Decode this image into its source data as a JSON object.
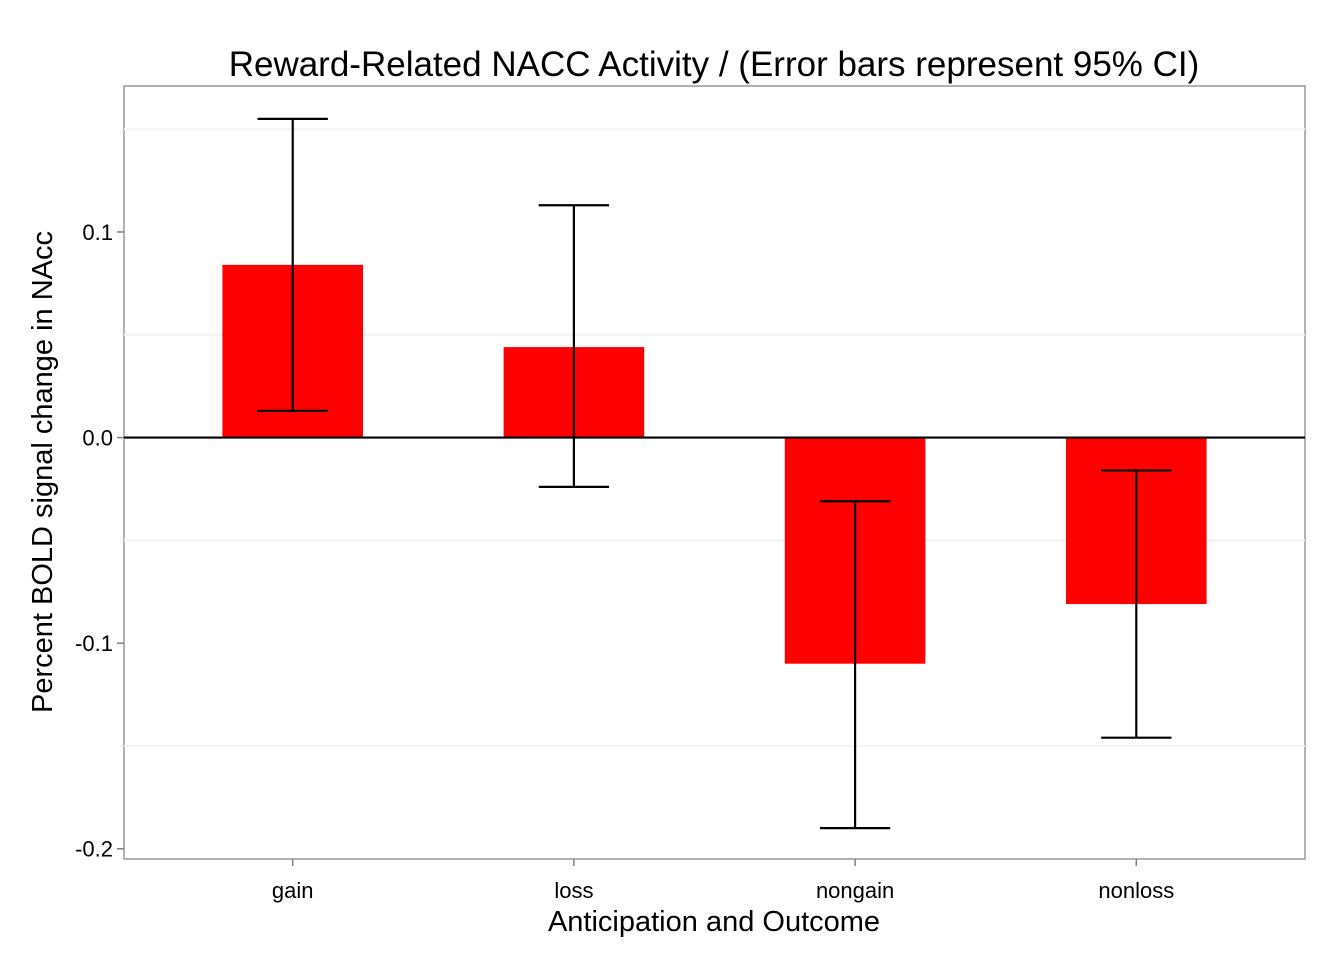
{
  "chart_data": {
    "type": "bar",
    "title": "Reward-Related NACC Activity / (Error bars represent 95% CI)",
    "xlabel": "Anticipation and Outcome",
    "ylabel": "Percent BOLD signal change in NAcc",
    "categories": [
      "gain",
      "loss",
      "nongain",
      "nonloss"
    ],
    "values": [
      0.084,
      0.044,
      -0.11,
      -0.081
    ],
    "ci_lower": [
      0.013,
      -0.024,
      -0.19,
      -0.146
    ],
    "ci_upper": [
      0.155,
      0.113,
      -0.031,
      -0.016
    ],
    "ylim": [
      -0.205,
      0.171
    ],
    "yticks": [
      -0.2,
      -0.1,
      0.0,
      0.1
    ],
    "ytick_labels": [
      "-0.2",
      "-0.1",
      "0.0",
      "0.1"
    ],
    "grid": true,
    "bar_color": "#ff0000",
    "legend": "none"
  }
}
